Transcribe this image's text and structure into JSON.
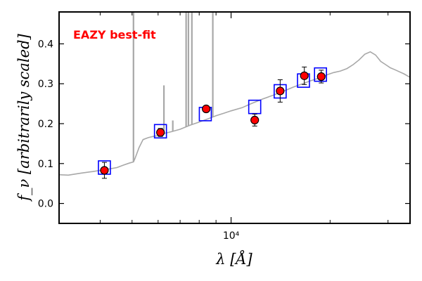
{
  "chart_data": {
    "type": "scatter",
    "title": "",
    "xlabel": "λ [Å]",
    "ylabel": "f_ν [arbitrarily scaled]",
    "xscale": "log",
    "xlim": [
      3000,
      35000
    ],
    "ylim": [
      -0.05,
      0.48
    ],
    "x_ticks": [
      {
        "value": 10000,
        "label": "10⁴"
      }
    ],
    "x_minor_ticks": [
      4000,
      5000,
      6000,
      7000,
      8000,
      9000,
      20000,
      30000
    ],
    "y_ticks": [
      0.0,
      0.1,
      0.2,
      0.3,
      0.4
    ],
    "grid": false,
    "annotation": {
      "text": "EAZY best-fit",
      "color": "#ff0000"
    },
    "colors": {
      "template": "#a8a8a8",
      "model": "#0000ff",
      "observed_fill": "#ff0000",
      "observed_edge": "#000000"
    },
    "template_continuum": [
      [
        3000,
        0.072
      ],
      [
        3200,
        0.071
      ],
      [
        3500,
        0.076
      ],
      [
        3800,
        0.08
      ],
      [
        4000,
        0.083
      ],
      [
        4300,
        0.087
      ],
      [
        4500,
        0.09
      ],
      [
        4700,
        0.096
      ],
      [
        4900,
        0.101
      ],
      [
        5050,
        0.104
      ],
      [
        5100,
        0.112
      ],
      [
        5250,
        0.14
      ],
      [
        5400,
        0.16
      ],
      [
        5600,
        0.165
      ],
      [
        5800,
        0.168
      ],
      [
        6000,
        0.17
      ],
      [
        6300,
        0.176
      ],
      [
        6600,
        0.18
      ],
      [
        7000,
        0.186
      ],
      [
        7500,
        0.196
      ],
      [
        8000,
        0.204
      ],
      [
        8500,
        0.212
      ],
      [
        9000,
        0.22
      ],
      [
        9500,
        0.226
      ],
      [
        10000,
        0.232
      ],
      [
        10800,
        0.24
      ],
      [
        11500,
        0.25
      ],
      [
        12500,
        0.262
      ],
      [
        13500,
        0.272
      ],
      [
        14500,
        0.282
      ],
      [
        15500,
        0.292
      ],
      [
        16500,
        0.3
      ],
      [
        17500,
        0.308
      ],
      [
        18500,
        0.314
      ],
      [
        19500,
        0.322
      ],
      [
        20500,
        0.328
      ],
      [
        21500,
        0.332
      ],
      [
        22500,
        0.338
      ],
      [
        23500,
        0.348
      ],
      [
        24500,
        0.36
      ],
      [
        25500,
        0.374
      ],
      [
        26500,
        0.38
      ],
      [
        27500,
        0.372
      ],
      [
        28500,
        0.356
      ],
      [
        29500,
        0.348
      ],
      [
        30500,
        0.34
      ],
      [
        31500,
        0.335
      ],
      [
        32500,
        0.33
      ],
      [
        33500,
        0.325
      ],
      [
        35000,
        0.316
      ]
    ],
    "template_lines": [
      {
        "x": 5050,
        "y": 0.48
      },
      {
        "x": 6250,
        "y": 0.296
      },
      {
        "x": 6650,
        "y": 0.208
      },
      {
        "x": 7300,
        "y": 0.48
      },
      {
        "x": 7420,
        "y": 0.48
      },
      {
        "x": 7600,
        "y": 0.48
      },
      {
        "x": 8800,
        "y": 0.48
      }
    ],
    "model_photometry": [
      {
        "x": 4120,
        "y": 0.09
      },
      {
        "x": 6100,
        "y": 0.181
      },
      {
        "x": 8350,
        "y": 0.224
      },
      {
        "x": 11800,
        "y": 0.242
      },
      {
        "x": 14100,
        "y": 0.281
      },
      {
        "x": 16600,
        "y": 0.308
      },
      {
        "x": 18700,
        "y": 0.323
      }
    ],
    "observed_photometry": [
      {
        "x": 4120,
        "y": 0.083,
        "err": 0.02
      },
      {
        "x": 6100,
        "y": 0.178,
        "err": 0.01
      },
      {
        "x": 8400,
        "y": 0.237,
        "err": 0.008
      },
      {
        "x": 11800,
        "y": 0.209,
        "err": 0.015
      },
      {
        "x": 14100,
        "y": 0.282,
        "err": 0.028
      },
      {
        "x": 16700,
        "y": 0.32,
        "err": 0.022
      },
      {
        "x": 18800,
        "y": 0.318,
        "err": 0.016
      }
    ]
  }
}
